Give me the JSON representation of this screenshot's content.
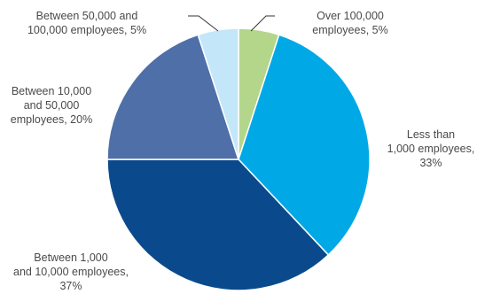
{
  "chart_data": {
    "type": "pie",
    "start_angle_deg": 0,
    "direction": "clockwise",
    "slices": [
      {
        "label_lines": [
          "Over 100,000",
          "employees, 5%"
        ],
        "value": 5,
        "color": "#b3d68b"
      },
      {
        "label_lines": [
          "Less than",
          "1,000 employees,",
          "33%"
        ],
        "value": 33,
        "color": "#00a9e6"
      },
      {
        "label_lines": [
          "Between 1,000",
          "and 10,000 employees,",
          "37%"
        ],
        "value": 37,
        "color": "#0a4a8c"
      },
      {
        "label_lines": [
          "Between 10,000",
          "and 50,000",
          "employees, 20%"
        ],
        "value": 20,
        "color": "#4f6fa8"
      },
      {
        "label_lines": [
          "Between 50,000 and",
          "100,000 employees, 5%"
        ],
        "value": 5,
        "color": "#c3e7f9"
      }
    ]
  }
}
